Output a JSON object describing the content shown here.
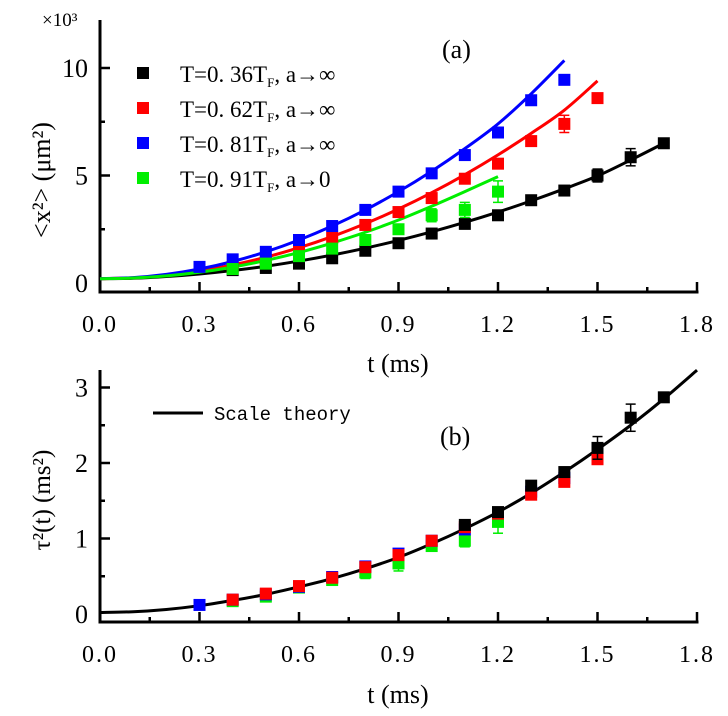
{
  "chart_data": [
    {
      "id": "a",
      "type": "scatter",
      "panel_label": "(a)",
      "xlabel": "t (ms)",
      "ylabel": "<x²> (μm²)",
      "y_multiplier": "×10³",
      "xlim": [
        0,
        1.8
      ],
      "ylim": [
        0,
        10.8
      ],
      "xticks": [
        "0.0",
        "0.3",
        "0.6",
        "0.9",
        "1.2",
        "1.5",
        "1.8"
      ],
      "xtick_values": [
        0,
        0.3,
        0.6,
        0.9,
        1.2,
        1.5,
        1.8
      ],
      "yticks": [
        "0",
        "5",
        "10"
      ],
      "ytick_values": [
        0,
        5,
        10
      ],
      "legend_position": "top-left",
      "series": [
        {
          "name": "T=0.36T_F, a→∞",
          "label_main": "T=0. 36T",
          "label_sub": "F",
          "label_tail": ",  a→∞",
          "color": "#000000",
          "x": [
            0.4,
            0.5,
            0.6,
            0.7,
            0.8,
            0.9,
            1.0,
            1.1,
            1.2,
            1.3,
            1.4,
            1.5,
            1.6,
            1.7
          ],
          "y": [
            0.6,
            0.7,
            0.9,
            1.15,
            1.5,
            1.85,
            2.3,
            2.75,
            3.15,
            3.85,
            4.3,
            5.0,
            5.85,
            6.5
          ],
          "err": [
            0.1,
            0.1,
            0.1,
            0.1,
            0.1,
            0.1,
            0.1,
            0.1,
            0.15,
            0.15,
            0.15,
            0.3,
            0.4,
            0.1
          ],
          "fit_x": [
            0,
            0.1,
            0.2,
            0.3,
            0.4,
            0.5,
            0.6,
            0.7,
            0.8,
            0.9,
            1.0,
            1.1,
            1.2,
            1.3,
            1.4,
            1.5,
            1.6,
            1.7
          ],
          "fit_y": [
            0.2,
            0.22,
            0.3,
            0.42,
            0.58,
            0.78,
            1.02,
            1.3,
            1.62,
            1.98,
            2.38,
            2.82,
            3.3,
            3.82,
            4.38,
            4.98,
            5.72,
            6.5
          ]
        },
        {
          "name": "T=0.62T_F, a→∞",
          "label_main": "T=0. 62T",
          "label_sub": "F",
          "label_tail": ",  a→∞",
          "color": "#ff0000",
          "x": [
            0.4,
            0.5,
            0.6,
            0.7,
            0.8,
            0.9,
            1.0,
            1.1,
            1.2,
            1.3,
            1.4,
            1.5
          ],
          "y": [
            0.75,
            1.05,
            1.65,
            2.1,
            2.7,
            3.3,
            3.95,
            4.85,
            5.55,
            6.6,
            7.4,
            8.6
          ],
          "err": [
            0.1,
            0.1,
            0.1,
            0.1,
            0.1,
            0.1,
            0.1,
            0.1,
            0.1,
            0.1,
            0.4,
            0.1
          ],
          "fit_x": [
            0,
            0.1,
            0.2,
            0.3,
            0.4,
            0.5,
            0.6,
            0.7,
            0.8,
            0.9,
            1.0,
            1.1,
            1.2,
            1.3,
            1.4,
            1.5
          ],
          "fit_y": [
            0.2,
            0.24,
            0.36,
            0.56,
            0.84,
            1.2,
            1.64,
            2.16,
            2.76,
            3.44,
            4.2,
            5.04,
            5.96,
            6.96,
            8.04,
            9.4
          ]
        },
        {
          "name": "T=0.81T_F, a→∞",
          "label_main": "T=0. 81T",
          "label_sub": "F",
          "label_tail": ",  a→∞",
          "color": "#0000ff",
          "x": [
            0.3,
            0.4,
            0.5,
            0.6,
            0.7,
            0.8,
            0.9,
            1.0,
            1.1,
            1.2,
            1.3,
            1.4
          ],
          "y": [
            0.75,
            1.1,
            1.45,
            2.0,
            2.65,
            3.4,
            4.25,
            5.1,
            5.95,
            7.0,
            8.5,
            9.45
          ],
          "err": [
            0.1,
            0.1,
            0.1,
            0.1,
            0.1,
            0.1,
            0.1,
            0.1,
            0.1,
            0.1,
            0.1,
            0.1
          ],
          "fit_x": [
            0,
            0.1,
            0.2,
            0.3,
            0.4,
            0.5,
            0.6,
            0.7,
            0.8,
            0.9,
            1.0,
            1.1,
            1.2,
            1.3,
            1.4
          ],
          "fit_y": [
            0.2,
            0.25,
            0.4,
            0.65,
            1.0,
            1.45,
            2.0,
            2.65,
            3.4,
            4.25,
            5.2,
            6.25,
            7.4,
            8.8,
            10.35
          ]
        },
        {
          "name": "T=0.91T_F, a→0",
          "label_main": "T=0. 91T",
          "label_sub": "F",
          "label_tail": ",  a→0",
          "color": "#00ee00",
          "x": [
            0.4,
            0.5,
            0.6,
            0.7,
            0.8,
            0.9,
            1.0,
            1.1,
            1.2
          ],
          "y": [
            0.65,
            0.9,
            1.25,
            1.6,
            2.0,
            2.5,
            3.15,
            3.4,
            4.25
          ],
          "err": [
            0.1,
            0.1,
            0.1,
            0.15,
            0.2,
            0.2,
            0.3,
            0.35,
            0.5
          ],
          "fit_x": [
            0,
            0.1,
            0.2,
            0.3,
            0.4,
            0.5,
            0.6,
            0.7,
            0.8,
            0.9,
            1.0,
            1.1,
            1.2
          ],
          "fit_y": [
            0.2,
            0.23,
            0.33,
            0.5,
            0.74,
            1.05,
            1.42,
            1.86,
            2.36,
            2.93,
            3.57,
            4.25,
            4.95
          ]
        }
      ]
    },
    {
      "id": "b",
      "type": "scatter",
      "panel_label": "(b)",
      "xlabel": "t (ms)",
      "ylabel": "τ²(t) (ms²)",
      "xlim": [
        0,
        1.8
      ],
      "ylim": [
        0,
        3.25
      ],
      "xticks": [
        "0.0",
        "0.3",
        "0.6",
        "0.9",
        "1.2",
        "1.5",
        "1.8"
      ],
      "xtick_values": [
        0,
        0.3,
        0.6,
        0.9,
        1.2,
        1.5,
        1.8
      ],
      "yticks": [
        "0",
        "1",
        "2",
        "3"
      ],
      "ytick_values": [
        0,
        1,
        2,
        3
      ],
      "legend_position": "top-left",
      "legend_line_label": "Scale theory",
      "theory": {
        "name": "Scale theory",
        "color": "#000000",
        "x": [
          0,
          0.1,
          0.2,
          0.3,
          0.4,
          0.5,
          0.6,
          0.7,
          0.8,
          0.9,
          1.0,
          1.1,
          1.2,
          1.3,
          1.4,
          1.5,
          1.6,
          1.7,
          1.8
        ],
        "y": [
          0.02,
          0.03,
          0.06,
          0.11,
          0.18,
          0.26,
          0.36,
          0.47,
          0.6,
          0.75,
          0.93,
          1.13,
          1.35,
          1.6,
          1.88,
          2.18,
          2.5,
          2.85,
          3.23
        ]
      },
      "series": [
        {
          "name": "T=0.36T_F, a→∞",
          "color": "#000000",
          "x": [
            1.1,
            1.2,
            1.3,
            1.4,
            1.5,
            1.6,
            1.7
          ],
          "y": [
            1.18,
            1.35,
            1.7,
            1.88,
            2.2,
            2.6,
            2.87
          ],
          "err": [
            0.03,
            0.03,
            0.03,
            0.03,
            0.15,
            0.18,
            0.03
          ]
        },
        {
          "name": "T=0.62T_F, a→∞",
          "color": "#ff0000",
          "x": [
            0.4,
            0.5,
            0.6,
            0.7,
            0.8,
            0.9,
            1.0,
            1.1,
            1.2,
            1.3,
            1.4,
            1.5
          ],
          "y": [
            0.19,
            0.27,
            0.37,
            0.48,
            0.62,
            0.78,
            0.97,
            1.15,
            1.33,
            1.58,
            1.75,
            2.05
          ],
          "err": [
            0.03,
            0.03,
            0.03,
            0.03,
            0.03,
            0.03,
            0.03,
            0.03,
            0.03,
            0.03,
            0.06,
            0.03
          ]
        },
        {
          "name": "T=0.81T_F, a→∞",
          "color": "#0000ff",
          "x": [
            0.3,
            0.4,
            0.5,
            0.6,
            0.7,
            0.8,
            0.9,
            1.0,
            1.1,
            1.2,
            1.3,
            1.4
          ],
          "y": [
            0.12,
            0.19,
            0.26,
            0.36,
            0.49,
            0.63,
            0.8,
            0.97,
            1.12,
            1.33,
            1.62,
            1.8
          ],
          "err": [
            0.03,
            0.03,
            0.03,
            0.03,
            0.03,
            0.03,
            0.03,
            0.03,
            0.03,
            0.03,
            0.03,
            0.03
          ]
        },
        {
          "name": "T=0.91T_F, a→0",
          "color": "#00ee00",
          "x": [
            0.4,
            0.5,
            0.6,
            0.7,
            0.8,
            0.9,
            1.0,
            1.1,
            1.2
          ],
          "y": [
            0.17,
            0.23,
            0.35,
            0.45,
            0.55,
            0.67,
            0.9,
            0.97,
            1.22
          ],
          "err": [
            0.03,
            0.03,
            0.03,
            0.05,
            0.08,
            0.1,
            0.05,
            0.08,
            0.15
          ]
        }
      ]
    }
  ]
}
